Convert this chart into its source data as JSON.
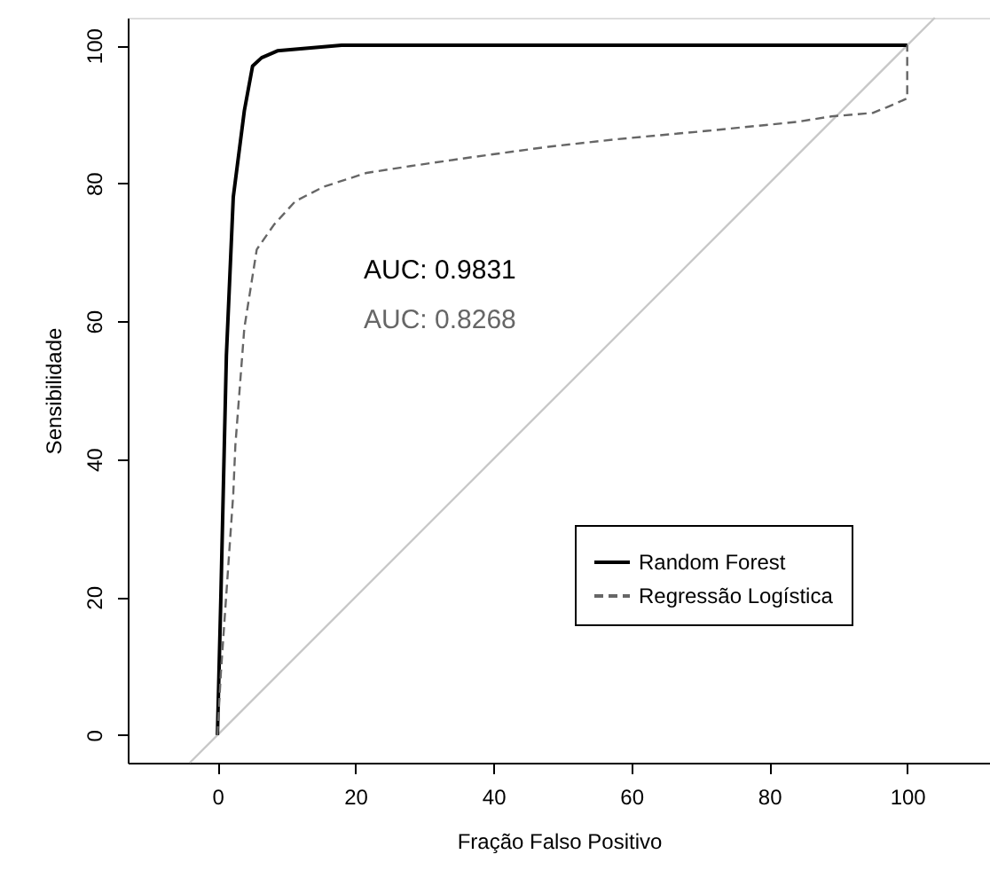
{
  "chart_data": {
    "type": "line",
    "xlabel": "Fração Falso Positivo",
    "ylabel": "Sensibilidade",
    "xlim": [
      -13,
      112
    ],
    "ylim": [
      -4,
      104
    ],
    "xticks": [
      0,
      20,
      40,
      60,
      80,
      100
    ],
    "yticks": [
      0,
      20,
      40,
      60,
      80,
      100
    ],
    "grid": false,
    "legend": "bottom right",
    "marker": "none",
    "series": [
      {
        "color": "#c8c8c8",
        "line_style": "solid",
        "x": [
          -4,
          104
        ],
        "values": [
          -4,
          104
        ]
      },
      {
        "name": "Random Forest",
        "color": "#000000",
        "line_style": "solid",
        "x": [
          0,
          0.5,
          1.0,
          1.3,
          2.3,
          3.9,
          5.1,
          6.4,
          8.7,
          18,
          100
        ],
        "values": [
          0,
          20,
          42,
          55,
          78,
          90.5,
          97,
          98.2,
          99.2,
          100,
          100
        ]
      },
      {
        "name": "Regressão Logística",
        "color": "#666666",
        "line_style": "dashed",
        "x": [
          0,
          0.5,
          2.3,
          2.6,
          3.9,
          5.7,
          8.2,
          11.3,
          15.4,
          21.6,
          28,
          37,
          48,
          58,
          71,
          84,
          89,
          95,
          97,
          100,
          100
        ],
        "values": [
          0,
          9,
          35,
          42,
          59,
          70.4,
          74,
          77.4,
          79.5,
          81.5,
          82.5,
          83.8,
          85.3,
          86.4,
          87.6,
          88.9,
          89.7,
          90.2,
          91,
          92.3,
          100
        ]
      }
    ],
    "annotations": [
      "AUC: 0.9831",
      "AUC: 0.8268"
    ]
  }
}
